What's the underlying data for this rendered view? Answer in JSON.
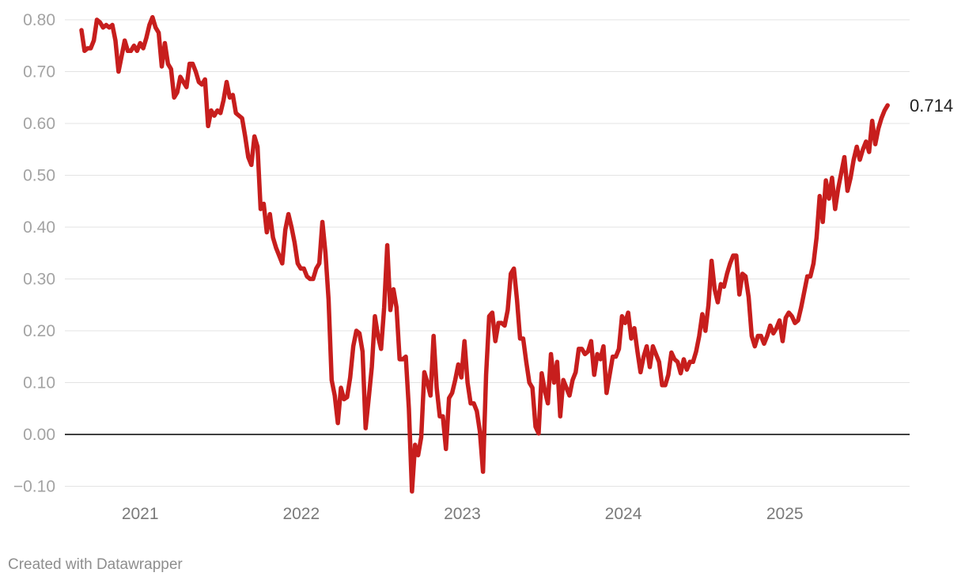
{
  "credit": "Created with Datawrapper",
  "chart_data": {
    "type": "line",
    "title": "",
    "xlabel": "",
    "ylabel": "",
    "x_range": [
      "2020-08-21",
      "2025-09-05"
    ],
    "ylim": [
      -0.12,
      0.82
    ],
    "yticks": [
      0.8,
      0.7,
      0.6,
      0.5,
      0.4,
      0.3,
      0.2,
      0.1,
      0.0,
      -0.1
    ],
    "ytick_labels": [
      "0.80",
      "0.70",
      "0.60",
      "0.50",
      "0.40",
      "0.30",
      "0.20",
      "0.10",
      "0.00",
      "−0.10"
    ],
    "xticks": [
      "2021-01-01",
      "2022-01-01",
      "2023-01-01",
      "2024-01-01",
      "2025-01-01"
    ],
    "xtick_labels": [
      "2021",
      "2022",
      "2023",
      "2024",
      "2025"
    ],
    "grid": "horizontal",
    "zero_line": true,
    "line_color": "#c71e1d",
    "end_label": "0.714",
    "series": [
      {
        "points": [
          [
            "2020-08-21",
            0.78
          ],
          [
            "2020-08-28",
            0.74
          ],
          [
            "2020-09-04",
            0.745
          ],
          [
            "2020-09-11",
            0.745
          ],
          [
            "2020-09-18",
            0.76
          ],
          [
            "2020-09-25",
            0.8
          ],
          [
            "2020-10-02",
            0.795
          ],
          [
            "2020-10-09",
            0.785
          ],
          [
            "2020-10-16",
            0.79
          ],
          [
            "2020-10-23",
            0.785
          ],
          [
            "2020-10-30",
            0.79
          ],
          [
            "2020-11-06",
            0.76
          ],
          [
            "2020-11-13",
            0.7
          ],
          [
            "2020-11-20",
            0.73
          ],
          [
            "2020-11-27",
            0.76
          ],
          [
            "2020-12-04",
            0.74
          ],
          [
            "2020-12-11",
            0.74
          ],
          [
            "2020-12-18",
            0.75
          ],
          [
            "2020-12-25",
            0.74
          ],
          [
            "2021-01-01",
            0.755
          ],
          [
            "2021-01-08",
            0.745
          ],
          [
            "2021-01-15",
            0.765
          ],
          [
            "2021-01-22",
            0.79
          ],
          [
            "2021-01-29",
            0.805
          ],
          [
            "2021-02-05",
            0.785
          ],
          [
            "2021-02-12",
            0.775
          ],
          [
            "2021-02-19",
            0.71
          ],
          [
            "2021-02-26",
            0.755
          ],
          [
            "2021-03-05",
            0.715
          ],
          [
            "2021-03-12",
            0.705
          ],
          [
            "2021-03-19",
            0.65
          ],
          [
            "2021-03-26",
            0.66
          ],
          [
            "2021-04-02",
            0.69
          ],
          [
            "2021-04-09",
            0.68
          ],
          [
            "2021-04-16",
            0.67
          ],
          [
            "2021-04-23",
            0.715
          ],
          [
            "2021-04-30",
            0.715
          ],
          [
            "2021-05-07",
            0.7
          ],
          [
            "2021-05-14",
            0.68
          ],
          [
            "2021-05-21",
            0.675
          ],
          [
            "2021-05-28",
            0.685
          ],
          [
            "2021-06-04",
            0.595
          ],
          [
            "2021-06-11",
            0.625
          ],
          [
            "2021-06-18",
            0.615
          ],
          [
            "2021-06-25",
            0.625
          ],
          [
            "2021-07-02",
            0.62
          ],
          [
            "2021-07-09",
            0.645
          ],
          [
            "2021-07-16",
            0.68
          ],
          [
            "2021-07-23",
            0.65
          ],
          [
            "2021-07-30",
            0.655
          ],
          [
            "2021-08-06",
            0.62
          ],
          [
            "2021-08-13",
            0.615
          ],
          [
            "2021-08-20",
            0.61
          ],
          [
            "2021-08-27",
            0.575
          ],
          [
            "2021-09-03",
            0.535
          ],
          [
            "2021-09-10",
            0.52
          ],
          [
            "2021-09-17",
            0.575
          ],
          [
            "2021-09-24",
            0.555
          ],
          [
            "2021-10-01",
            0.435
          ],
          [
            "2021-10-08",
            0.445
          ],
          [
            "2021-10-15",
            0.39
          ],
          [
            "2021-10-22",
            0.425
          ],
          [
            "2021-10-29",
            0.38
          ],
          [
            "2021-11-05",
            0.36
          ],
          [
            "2021-11-12",
            0.345
          ],
          [
            "2021-11-19",
            0.33
          ],
          [
            "2021-11-26",
            0.395
          ],
          [
            "2021-12-03",
            0.425
          ],
          [
            "2021-12-10",
            0.4
          ],
          [
            "2021-12-17",
            0.37
          ],
          [
            "2021-12-24",
            0.33
          ],
          [
            "2021-12-31",
            0.32
          ],
          [
            "2022-01-07",
            0.32
          ],
          [
            "2022-01-14",
            0.305
          ],
          [
            "2022-01-21",
            0.3
          ],
          [
            "2022-01-28",
            0.3
          ],
          [
            "2022-02-04",
            0.32
          ],
          [
            "2022-02-11",
            0.33
          ],
          [
            "2022-02-18",
            0.41
          ],
          [
            "2022-02-25",
            0.35
          ],
          [
            "2022-03-04",
            0.26
          ],
          [
            "2022-03-11",
            0.105
          ],
          [
            "2022-03-18",
            0.075
          ],
          [
            "2022-03-25",
            0.022
          ],
          [
            "2022-04-01",
            0.09
          ],
          [
            "2022-04-08",
            0.068
          ],
          [
            "2022-04-15",
            0.072
          ],
          [
            "2022-04-22",
            0.11
          ],
          [
            "2022-04-29",
            0.17
          ],
          [
            "2022-05-06",
            0.2
          ],
          [
            "2022-05-13",
            0.195
          ],
          [
            "2022-05-20",
            0.16
          ],
          [
            "2022-05-27",
            0.012
          ],
          [
            "2022-06-03",
            0.07
          ],
          [
            "2022-06-10",
            0.13
          ],
          [
            "2022-06-17",
            0.228
          ],
          [
            "2022-06-24",
            0.19
          ],
          [
            "2022-07-01",
            0.165
          ],
          [
            "2022-07-08",
            0.245
          ],
          [
            "2022-07-15",
            0.365
          ],
          [
            "2022-07-22",
            0.24
          ],
          [
            "2022-07-29",
            0.28
          ],
          [
            "2022-08-05",
            0.245
          ],
          [
            "2022-08-12",
            0.145
          ],
          [
            "2022-08-19",
            0.145
          ],
          [
            "2022-08-26",
            0.15
          ],
          [
            "2022-09-02",
            0.05
          ],
          [
            "2022-09-09",
            -0.11
          ],
          [
            "2022-09-16",
            -0.02
          ],
          [
            "2022-09-23",
            -0.04
          ],
          [
            "2022-09-30",
            -0.005
          ],
          [
            "2022-10-07",
            0.12
          ],
          [
            "2022-10-14",
            0.1
          ],
          [
            "2022-10-21",
            0.075
          ],
          [
            "2022-10-28",
            0.19
          ],
          [
            "2022-11-04",
            0.09
          ],
          [
            "2022-11-11",
            0.035
          ],
          [
            "2022-11-18",
            0.035
          ],
          [
            "2022-11-25",
            -0.028
          ],
          [
            "2022-12-02",
            0.07
          ],
          [
            "2022-12-09",
            0.08
          ],
          [
            "2022-12-16",
            0.105
          ],
          [
            "2022-12-23",
            0.135
          ],
          [
            "2022-12-30",
            0.11
          ],
          [
            "2023-01-06",
            0.18
          ],
          [
            "2023-01-13",
            0.1
          ],
          [
            "2023-01-20",
            0.06
          ],
          [
            "2023-01-27",
            0.06
          ],
          [
            "2023-02-03",
            0.045
          ],
          [
            "2023-02-10",
            0.005
          ],
          [
            "2023-02-17",
            -0.072
          ],
          [
            "2023-02-24",
            0.115
          ],
          [
            "2023-03-03",
            0.228
          ],
          [
            "2023-03-10",
            0.235
          ],
          [
            "2023-03-17",
            0.18
          ],
          [
            "2023-03-24",
            0.215
          ],
          [
            "2023-03-31",
            0.215
          ],
          [
            "2023-04-07",
            0.21
          ],
          [
            "2023-04-14",
            0.24
          ],
          [
            "2023-04-21",
            0.31
          ],
          [
            "2023-04-28",
            0.32
          ],
          [
            "2023-05-05",
            0.26
          ],
          [
            "2023-05-12",
            0.185
          ],
          [
            "2023-05-19",
            0.185
          ],
          [
            "2023-05-26",
            0.14
          ],
          [
            "2023-06-02",
            0.1
          ],
          [
            "2023-06-09",
            0.09
          ],
          [
            "2023-06-16",
            0.015
          ],
          [
            "2023-06-23",
            0.002
          ],
          [
            "2023-06-30",
            0.118
          ],
          [
            "2023-07-07",
            0.085
          ],
          [
            "2023-07-14",
            0.06
          ],
          [
            "2023-07-21",
            0.155
          ],
          [
            "2023-07-28",
            0.1
          ],
          [
            "2023-08-04",
            0.14
          ],
          [
            "2023-08-11",
            0.035
          ],
          [
            "2023-08-18",
            0.105
          ],
          [
            "2023-08-25",
            0.09
          ],
          [
            "2023-09-01",
            0.075
          ],
          [
            "2023-09-08",
            0.105
          ],
          [
            "2023-09-15",
            0.12
          ],
          [
            "2023-09-22",
            0.165
          ],
          [
            "2023-09-29",
            0.165
          ],
          [
            "2023-10-06",
            0.155
          ],
          [
            "2023-10-13",
            0.16
          ],
          [
            "2023-10-20",
            0.18
          ],
          [
            "2023-10-27",
            0.115
          ],
          [
            "2023-11-03",
            0.155
          ],
          [
            "2023-11-10",
            0.145
          ],
          [
            "2023-11-17",
            0.17
          ],
          [
            "2023-11-24",
            0.08
          ],
          [
            "2023-12-01",
            0.115
          ],
          [
            "2023-12-08",
            0.15
          ],
          [
            "2023-12-15",
            0.15
          ],
          [
            "2023-12-22",
            0.165
          ],
          [
            "2023-12-29",
            0.228
          ],
          [
            "2024-01-05",
            0.215
          ],
          [
            "2024-01-12",
            0.235
          ],
          [
            "2024-01-19",
            0.185
          ],
          [
            "2024-01-26",
            0.205
          ],
          [
            "2024-02-02",
            0.16
          ],
          [
            "2024-02-09",
            0.12
          ],
          [
            "2024-02-16",
            0.15
          ],
          [
            "2024-02-23",
            0.17
          ],
          [
            "2024-03-01",
            0.13
          ],
          [
            "2024-03-08",
            0.17
          ],
          [
            "2024-03-15",
            0.155
          ],
          [
            "2024-03-22",
            0.14
          ],
          [
            "2024-03-29",
            0.095
          ],
          [
            "2024-04-05",
            0.095
          ],
          [
            "2024-04-12",
            0.115
          ],
          [
            "2024-04-19",
            0.158
          ],
          [
            "2024-04-26",
            0.145
          ],
          [
            "2024-05-03",
            0.14
          ],
          [
            "2024-05-10",
            0.118
          ],
          [
            "2024-05-17",
            0.145
          ],
          [
            "2024-05-24",
            0.125
          ],
          [
            "2024-05-31",
            0.14
          ],
          [
            "2024-06-07",
            0.14
          ],
          [
            "2024-06-14",
            0.16
          ],
          [
            "2024-06-21",
            0.19
          ],
          [
            "2024-06-28",
            0.232
          ],
          [
            "2024-07-05",
            0.2
          ],
          [
            "2024-07-12",
            0.25
          ],
          [
            "2024-07-19",
            0.335
          ],
          [
            "2024-07-26",
            0.28
          ],
          [
            "2024-08-02",
            0.255
          ],
          [
            "2024-08-09",
            0.29
          ],
          [
            "2024-08-16",
            0.285
          ],
          [
            "2024-08-23",
            0.31
          ],
          [
            "2024-08-30",
            0.33
          ],
          [
            "2024-09-06",
            0.345
          ],
          [
            "2024-09-13",
            0.345
          ],
          [
            "2024-09-20",
            0.27
          ],
          [
            "2024-09-27",
            0.31
          ],
          [
            "2024-10-04",
            0.305
          ],
          [
            "2024-10-11",
            0.265
          ],
          [
            "2024-10-18",
            0.19
          ],
          [
            "2024-10-25",
            0.17
          ],
          [
            "2024-11-01",
            0.19
          ],
          [
            "2024-11-08",
            0.19
          ],
          [
            "2024-11-15",
            0.175
          ],
          [
            "2024-11-22",
            0.19
          ],
          [
            "2024-11-29",
            0.21
          ],
          [
            "2024-12-06",
            0.195
          ],
          [
            "2024-12-13",
            0.205
          ],
          [
            "2024-12-20",
            0.22
          ],
          [
            "2024-12-27",
            0.18
          ],
          [
            "2025-01-03",
            0.225
          ],
          [
            "2025-01-10",
            0.235
          ],
          [
            "2025-01-17",
            0.228
          ],
          [
            "2025-01-24",
            0.215
          ],
          [
            "2025-01-31",
            0.22
          ],
          [
            "2025-02-07",
            0.245
          ],
          [
            "2025-02-14",
            0.275
          ],
          [
            "2025-02-21",
            0.305
          ],
          [
            "2025-02-28",
            0.305
          ],
          [
            "2025-03-07",
            0.33
          ],
          [
            "2025-03-14",
            0.38
          ],
          [
            "2025-03-21",
            0.46
          ],
          [
            "2025-03-28",
            0.41
          ],
          [
            "2025-04-04",
            0.49
          ],
          [
            "2025-04-11",
            0.455
          ],
          [
            "2025-04-18",
            0.495
          ],
          [
            "2025-04-25",
            0.435
          ],
          [
            "2025-05-02",
            0.475
          ],
          [
            "2025-05-09",
            0.505
          ],
          [
            "2025-05-16",
            0.535
          ],
          [
            "2025-05-23",
            0.47
          ],
          [
            "2025-05-30",
            0.495
          ],
          [
            "2025-06-06",
            0.53
          ],
          [
            "2025-06-13",
            0.555
          ],
          [
            "2025-06-20",
            0.53
          ],
          [
            "2025-06-27",
            0.55
          ],
          [
            "2025-07-04",
            0.565
          ],
          [
            "2025-07-11",
            0.545
          ],
          [
            "2025-07-18",
            0.605
          ],
          [
            "2025-07-25",
            0.56
          ],
          [
            "2025-08-01",
            0.59
          ],
          [
            "2025-08-08",
            0.61
          ],
          [
            "2025-08-15",
            0.625
          ],
          [
            "2025-08-22",
            0.635
          ]
        ]
      }
    ]
  }
}
